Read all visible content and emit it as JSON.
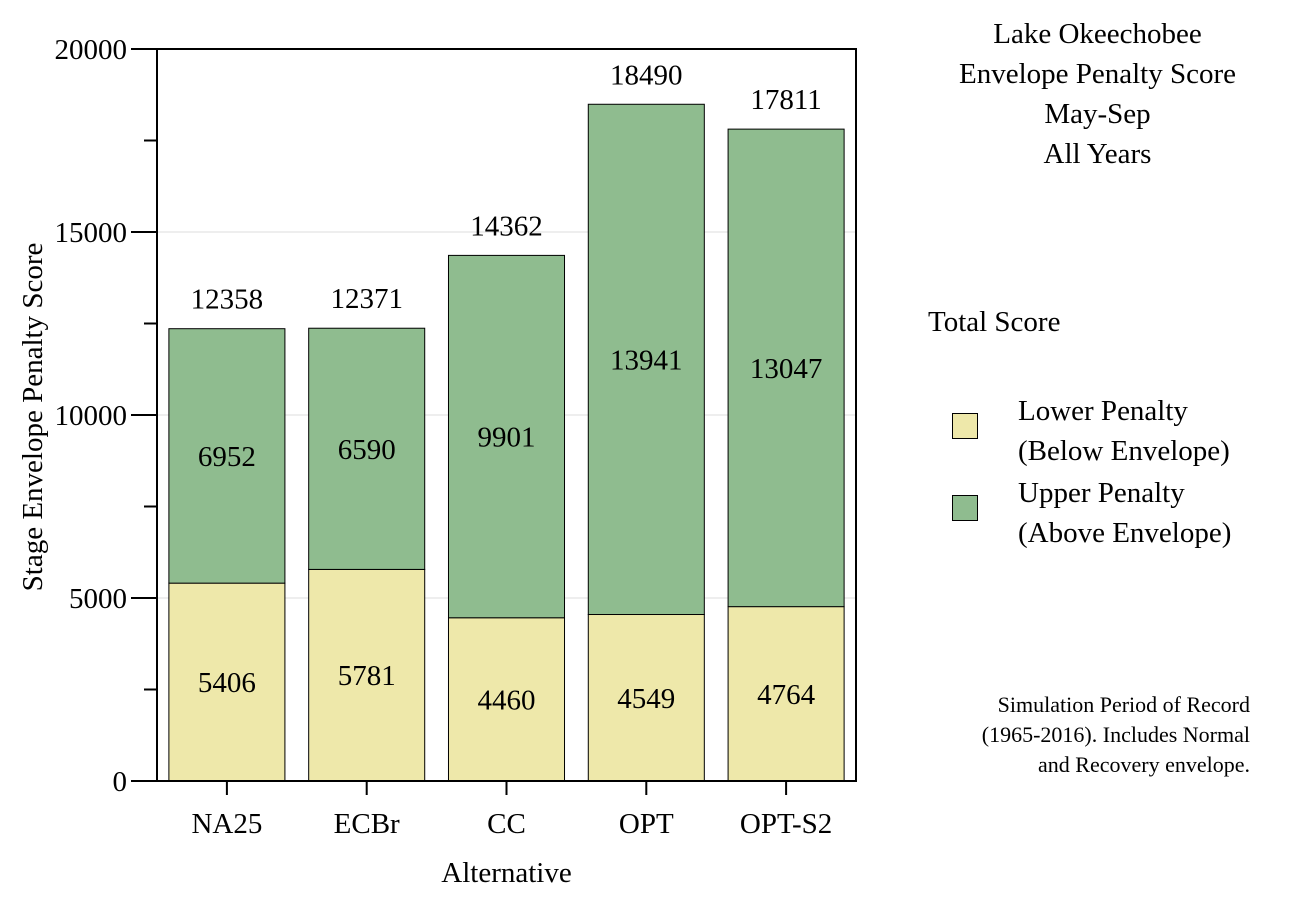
{
  "chart_data": {
    "type": "bar",
    "stacked": true,
    "categories": [
      "NA25",
      "ECBr",
      "CC",
      "OPT",
      "OPT-S2"
    ],
    "series": [
      {
        "name": "Lower Penalty (Below Envelope)",
        "values": [
          5406,
          5781,
          4460,
          4549,
          4764
        ],
        "color": "#eee8aa"
      },
      {
        "name": "Upper Penalty (Above Envelope)",
        "values": [
          6952,
          6590,
          9901,
          13941,
          13047
        ],
        "color": "#8fbc8f"
      }
    ],
    "totals": [
      12358,
      12371,
      14362,
      18490,
      17811
    ],
    "title_lines": [
      "Lake Okeechobee",
      "Envelope Penalty Score",
      "May-Sep",
      "All Years"
    ],
    "xlabel": "Alternative",
    "ylabel": "Stage Envelope Penalty Score",
    "ylim": [
      0,
      20000
    ],
    "yticks": [
      0,
      5000,
      10000,
      15000,
      20000
    ],
    "yticks_minor": [
      2500,
      7500,
      12500,
      17500
    ],
    "grid": true,
    "legend": {
      "title": "Total Score",
      "placement": "right",
      "items": [
        {
          "lines": [
            "Lower Penalty",
            "(Below Envelope)"
          ],
          "color": "#eee8aa"
        },
        {
          "lines": [
            "Upper Penalty",
            "(Above Envelope)"
          ],
          "color": "#8fbc8f"
        }
      ]
    },
    "note_lines": [
      "Simulation Period of Record",
      "(1965-2016). Includes Normal",
      "and Recovery envelope."
    ]
  }
}
